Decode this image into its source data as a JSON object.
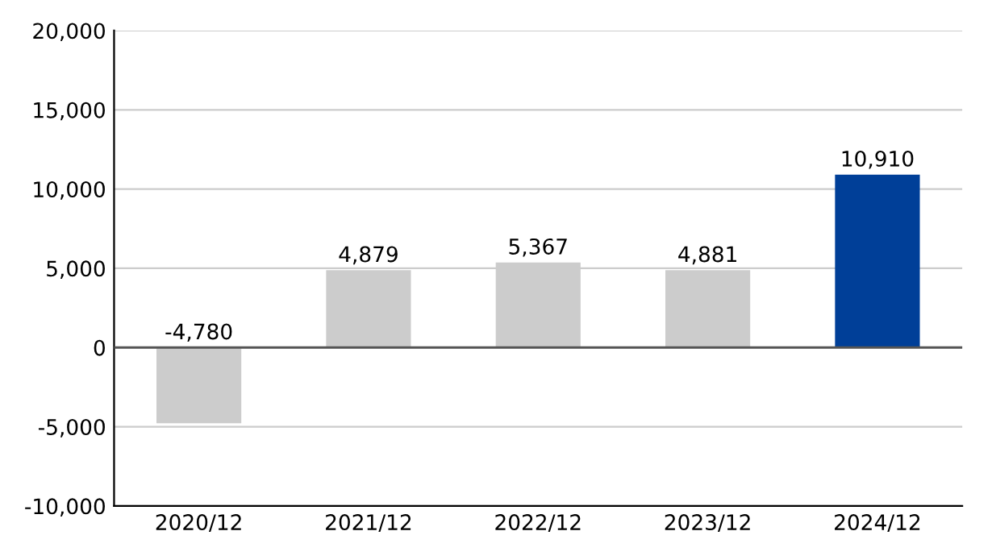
{
  "chart_data": {
    "type": "bar",
    "categories": [
      "2020/12",
      "2021/12",
      "2022/12",
      "2023/12",
      "2024/12"
    ],
    "values": [
      -4780,
      4879,
      5367,
      4881,
      10910
    ],
    "colors": [
      "#cccccc",
      "#cccccc",
      "#cccccc",
      "#cccccc",
      "#003f98"
    ],
    "value_labels": [
      "-4,780",
      "4,879",
      "5,367",
      "4,881",
      "10,910"
    ],
    "ylim": [
      -10000,
      20000
    ],
    "yticks": [
      {
        "value": -10000,
        "label": "-10,000"
      },
      {
        "value": -5000,
        "label": "-5,000"
      },
      0,
      {
        "value": 5000,
        "label": "5,000"
      },
      {
        "value": 10000,
        "label": "10,000"
      },
      {
        "value": 15000,
        "label": "15,000"
      },
      {
        "value": 20000,
        "label": "20,000"
      }
    ],
    "ref_lines": [
      {
        "axis": "y",
        "value": 0,
        "color": "#555555"
      }
    ],
    "grid": "y"
  }
}
